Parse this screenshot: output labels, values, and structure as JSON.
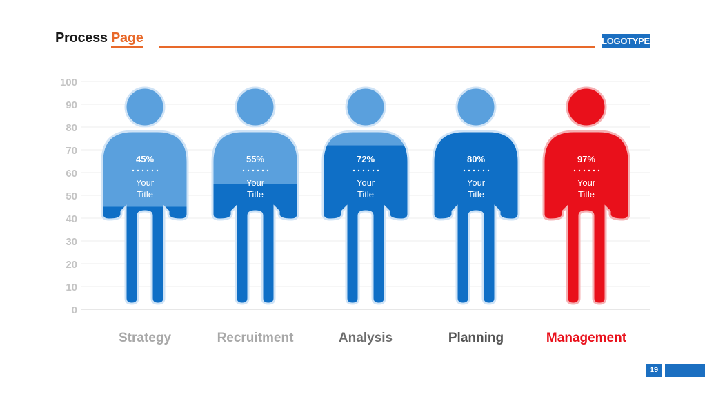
{
  "header": {
    "title_part1": "Process ",
    "title_part2": "Page",
    "logo": "LOGOTYPE"
  },
  "footer": {
    "page_number": "19"
  },
  "colors": {
    "accent_orange": "#e8692a",
    "brand_blue": "#1b6fc1",
    "light_blue": "#5aa0dd",
    "dark_blue": "#0f6fc6",
    "highlight_red": "#e9101b"
  },
  "chart_data": {
    "type": "bar",
    "categories": [
      "Strategy",
      "Recruitment",
      "Analysis",
      "Planning",
      "Management"
    ],
    "values": [
      45,
      55,
      72,
      80,
      97
    ],
    "value_labels": [
      "45%",
      "55%",
      "72%",
      "80%",
      "97%"
    ],
    "bar_caption": [
      "Your",
      "Title"
    ],
    "ylim": [
      0,
      100
    ],
    "yticks": [
      0,
      10,
      20,
      30,
      40,
      50,
      60,
      70,
      80,
      90,
      100
    ],
    "grid": true,
    "highlight_category": "Management",
    "category_label_colors": [
      "#a8a8a8",
      "#a8a8a8",
      "#6d6d6d",
      "#555555",
      "#e9101b"
    ]
  }
}
